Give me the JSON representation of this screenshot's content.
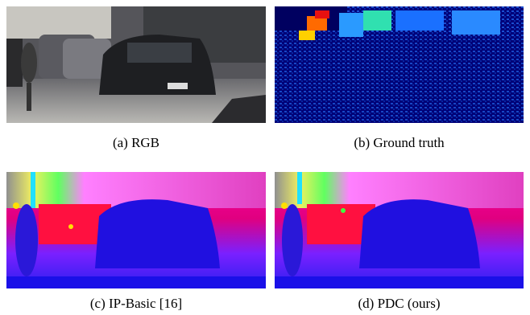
{
  "figure": {
    "panels": [
      {
        "caption": "(a) RGB"
      },
      {
        "caption": "(b) Ground truth"
      },
      {
        "caption": "(c) IP-Basic [16]"
      },
      {
        "caption": "(d) PDC (ours)"
      }
    ]
  }
}
